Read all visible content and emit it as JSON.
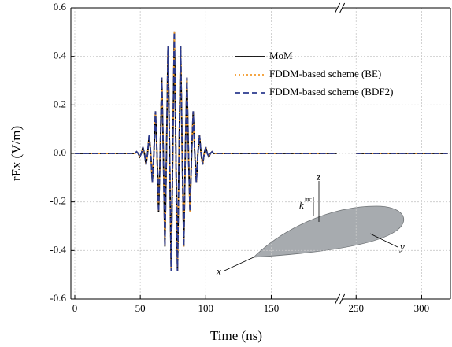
{
  "chart_data": {
    "type": "line",
    "x_label": "Time (ns)",
    "y_label": "rEx (V/m)",
    "xlim": [
      -3,
      322
    ],
    "x_break": [
      200,
      240
    ],
    "xticks": [
      0,
      50,
      100,
      150,
      250,
      300
    ],
    "ylim": [
      -0.6,
      0.6
    ],
    "yticks": [
      -0.6,
      -0.4,
      -0.2,
      {
        "value": 0,
        "label": "0.0"
      },
      0.2,
      0.4,
      0.6
    ],
    "grid": true,
    "legend": "upper center",
    "x": [
      0,
      44.8,
      46,
      47.2,
      48.4,
      49.6,
      50.8,
      52,
      53.2,
      54.4,
      55.6,
      56.8,
      58,
      59.2,
      60.4,
      61.6,
      62.8,
      64,
      65.2,
      66.4,
      67.6,
      68.8,
      70,
      71.2,
      72.4,
      73.6,
      74.8,
      76,
      77.2,
      78.4,
      79.6,
      80.8,
      82,
      83.2,
      84.4,
      85.6,
      86.8,
      88,
      89.2,
      90.4,
      91.6,
      92.8,
      94,
      95.2,
      96.4,
      97.6,
      98.8,
      100,
      101.2,
      102.4,
      103.6,
      104.8,
      106,
      107.2,
      200,
      250,
      320
    ],
    "series": [
      {
        "name": "MoM",
        "color": "#000000",
        "style": "solid",
        "values": [
          0,
          0,
          0,
          0.007,
          0,
          -0.014,
          0,
          0.026,
          0,
          -0.046,
          0,
          0.076,
          0,
          -0.118,
          0,
          0.174,
          0,
          -0.24,
          0,
          0.313,
          0,
          -0.384,
          0,
          0.444,
          0,
          -0.486,
          0,
          0.5,
          0,
          -0.486,
          0,
          0.444,
          0,
          -0.384,
          0,
          0.313,
          0,
          -0.24,
          0,
          0.174,
          0,
          -0.118,
          0,
          0.076,
          0,
          -0.046,
          0,
          0.026,
          0,
          -0.014,
          0,
          0.007,
          0,
          0,
          0,
          0,
          0
        ]
      },
      {
        "name": "FDDM-based scheme (BE)",
        "color": "#f39a2b",
        "style": "dotted",
        "values": [
          0,
          0,
          0,
          0.007,
          0,
          -0.014,
          0,
          0.026,
          0,
          -0.046,
          0,
          0.076,
          0,
          -0.118,
          0,
          0.174,
          0,
          -0.24,
          0,
          0.313,
          0,
          -0.384,
          0,
          0.444,
          0,
          -0.486,
          0,
          0.5,
          0,
          -0.486,
          0,
          0.444,
          0,
          -0.384,
          0,
          0.313,
          0,
          -0.24,
          0,
          0.174,
          0,
          -0.118,
          0,
          0.076,
          0,
          -0.046,
          0,
          0.026,
          0,
          -0.014,
          0,
          0.007,
          0,
          0,
          0,
          0,
          0
        ]
      },
      {
        "name": "FDDM-based scheme (BDF2)",
        "color": "#2b3a8f",
        "style": "dashed",
        "values": [
          0,
          0,
          0,
          0.007,
          0,
          -0.014,
          0,
          0.026,
          0,
          -0.046,
          0,
          0.076,
          0,
          -0.118,
          0,
          0.174,
          0,
          -0.24,
          0,
          0.313,
          0,
          -0.384,
          0,
          0.444,
          0,
          -0.486,
          0,
          0.5,
          0,
          -0.486,
          0,
          0.444,
          0,
          -0.384,
          0,
          0.313,
          0,
          -0.24,
          0,
          0.174,
          0,
          -0.118,
          0,
          0.076,
          0,
          -0.046,
          0,
          0.026,
          0,
          -0.014,
          0,
          0.007,
          0,
          0,
          0,
          0,
          0
        ]
      }
    ],
    "inset_labels": [
      "x",
      "y",
      "z",
      "k",
      "inc"
    ]
  }
}
